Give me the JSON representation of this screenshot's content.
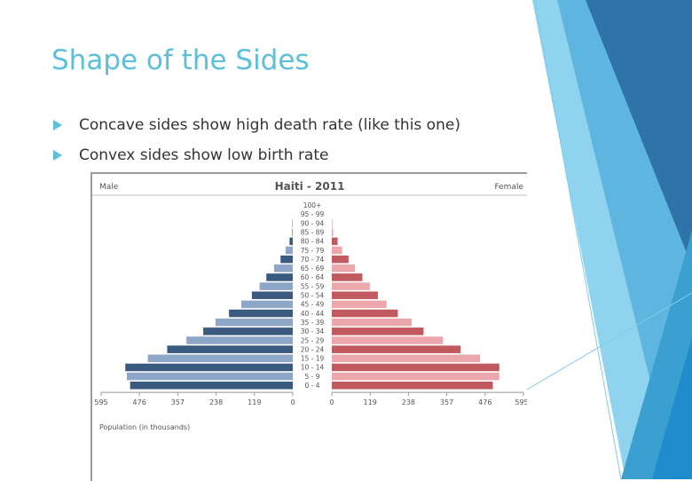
{
  "slide": {
    "title": "Shape of the Sides",
    "bullets": [
      "Concave sides show high death rate (like this one)",
      "Convex sides show low birth rate"
    ]
  },
  "colors": {
    "accent": "#5bc0d9",
    "male_dark": "#3b5a80",
    "male_light": "#8ea6c8",
    "female_dark": "#c05a5e",
    "female_light": "#eba7ab"
  },
  "chart_data": {
    "type": "bar",
    "title": "Haiti - 2011",
    "left_label": "Male",
    "right_label": "Female",
    "xlabel": "Population (in thousands)",
    "xlim": [
      0,
      595
    ],
    "ticks": [
      595,
      476,
      357,
      238,
      119,
      0
    ],
    "categories": [
      "100+",
      "95 - 99",
      "90 - 94",
      "85 - 89",
      "80 - 84",
      "75 - 79",
      "70 - 74",
      "65 - 69",
      "60 - 64",
      "55 - 59",
      "50 - 54",
      "45 - 49",
      "40 - 44",
      "35 - 39",
      "30 - 34",
      "25 - 29",
      "20 - 24",
      "15 - 19",
      "10 - 14",
      "5 - 9",
      "0 - 4"
    ],
    "series": [
      {
        "name": "Male",
        "values": [
          0,
          0,
          1,
          3,
          10,
          22,
          38,
          58,
          82,
          103,
          127,
          160,
          198,
          240,
          278,
          330,
          390,
          450,
          520,
          515,
          505
        ]
      },
      {
        "name": "Female",
        "values": [
          0,
          0,
          1,
          4,
          18,
          32,
          52,
          72,
          95,
          118,
          143,
          170,
          205,
          248,
          285,
          345,
          400,
          460,
          520,
          520,
          500
        ]
      }
    ]
  }
}
